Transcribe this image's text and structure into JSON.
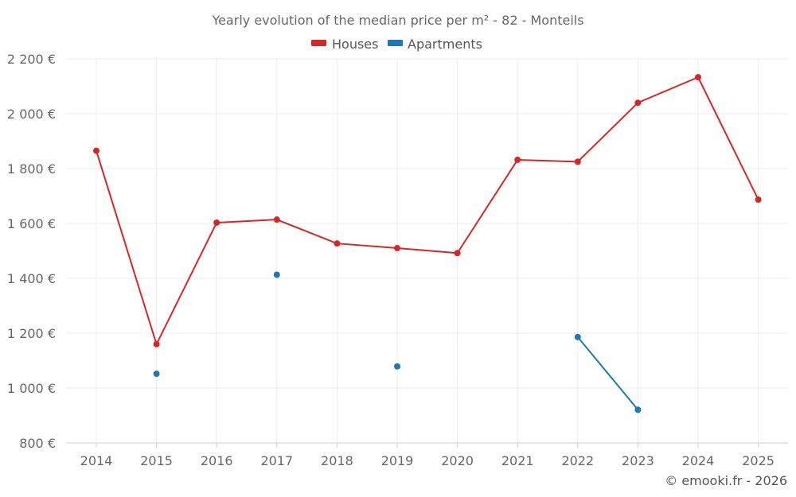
{
  "chart_data": {
    "type": "line",
    "title": "Yearly evolution of the median price per m² - 82 - Monteils",
    "xlabel": "",
    "ylabel": "",
    "categories": [
      "2014",
      "2015",
      "2016",
      "2017",
      "2018",
      "2019",
      "2020",
      "2021",
      "2022",
      "2023",
      "2024",
      "2025"
    ],
    "ylim": [
      800,
      2200
    ],
    "yticks": [
      800,
      1000,
      1200,
      1400,
      1600,
      1800,
      2000,
      2200
    ],
    "ytick_labels": [
      "800 €",
      "1 000 €",
      "1 200 €",
      "1 400 €",
      "1 600 €",
      "1 800 €",
      "2 000 €",
      "2 200 €"
    ],
    "grid": true,
    "legend_position": "top-center",
    "series": [
      {
        "name": "Houses",
        "color": "#d62728",
        "values": [
          1865,
          1160,
          1603,
          1614,
          1527,
          1510,
          1492,
          1832,
          1825,
          2040,
          2133,
          1687
        ]
      },
      {
        "name": "Apartments",
        "color": "#1f77b4",
        "values": [
          null,
          1052,
          null,
          1413,
          null,
          1079,
          null,
          null,
          1186,
          921,
          null,
          null
        ]
      }
    ]
  },
  "credit": "© emooki.fr - 2026"
}
